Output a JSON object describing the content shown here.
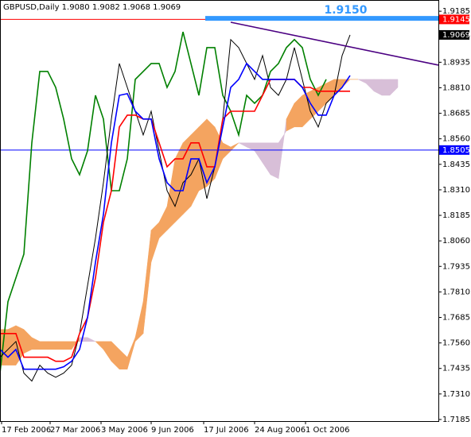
{
  "chart_data": {
    "type": "ichimoku",
    "title": "GBPUSD,Daily  1.9080 1.9082 1.9068 1.9069",
    "xlim": [
      0,
      55.1
    ],
    "xticks": [
      {
        "value": 0.2,
        "label": "17 Feb 2006"
      },
      {
        "value": 6.3,
        "label": "27 Mar 2006"
      },
      {
        "value": 12.7,
        "label": "3 May 2006"
      },
      {
        "value": 19.0,
        "label": "9 Jun 2006"
      },
      {
        "value": 25.6,
        "label": "17 Jul 2006"
      },
      {
        "value": 32.0,
        "label": "24 Aug 2006"
      },
      {
        "value": 38.4,
        "label": "1 Oct 2006"
      }
    ],
    "ylim": [
      1.7177,
      1.924
    ],
    "yticks": [
      1.9185,
      {
        "value": 1.906,
        "label": "1.9060"
      },
      1.8935,
      {
        "value": 1.881,
        "label": "1.8810"
      },
      1.8685,
      {
        "value": 1.856,
        "label": "1.8560"
      },
      1.8435,
      {
        "value": 1.831,
        "label": "1.8310"
      },
      1.8185,
      {
        "value": 1.806,
        "label": "1.8060"
      },
      1.7935,
      {
        "value": 1.781,
        "label": "1.7810"
      },
      1.7685,
      {
        "value": 1.756,
        "label": "1.7560"
      },
      1.7435,
      {
        "value": 1.731,
        "label": "1.7310"
      },
      1.7185
    ],
    "cloud": {
      "up_color": "#f4a460",
      "down_color": "#d8bfd8",
      "span_a": [
        1.7626,
        1.7626,
        1.7645,
        1.7626,
        1.7587,
        1.7567,
        1.7567,
        1.7567,
        1.7567,
        1.7567,
        1.7567,
        1.7567,
        1.7567,
        1.7567,
        1.7567,
        1.7528,
        1.749,
        1.7587,
        1.7762,
        1.8112,
        1.8151,
        1.8229,
        1.8462,
        1.854,
        1.8579,
        1.8618,
        1.8657,
        1.8618,
        1.854,
        1.852,
        1.854,
        1.852,
        1.8501,
        1.8443,
        1.8384,
        1.8365,
        1.8657,
        1.8734,
        1.8773,
        1.8793,
        1.8812,
        1.8832,
        1.8851,
        1.8851,
        1.8851,
        1.8851,
        1.8832,
        1.8793,
        1.8773,
        1.8773,
        1.8812
      ],
      "span_b": [
        1.7451,
        1.7451,
        1.7451,
        1.7509,
        1.7528,
        1.7528,
        1.7528,
        1.7528,
        1.7528,
        1.7528,
        1.7587,
        1.7587,
        1.7567,
        1.7528,
        1.747,
        1.7431,
        1.7431,
        1.7567,
        1.7606,
        1.7956,
        1.8073,
        1.8112,
        1.8151,
        1.819,
        1.8229,
        1.8306,
        1.8326,
        1.8365,
        1.8462,
        1.8501,
        1.854,
        1.854,
        1.854,
        1.854,
        1.854,
        1.854,
        1.8598,
        1.8618,
        1.8618,
        1.8657,
        1.8695,
        1.8734,
        1.8773,
        1.8812,
        1.8851,
        1.8851,
        1.8851,
        1.8851,
        1.8851,
        1.8851,
        1.8851
      ]
    },
    "series": [
      {
        "color": "#008000",
        "values": [
          1.7412,
          1.7762,
          1.7879,
          1.7995,
          1.854,
          1.889,
          1.889,
          1.8812,
          1.8657,
          1.8462,
          1.8384,
          1.8501,
          1.8773,
          1.8657,
          1.8306,
          1.8306,
          1.8462,
          1.8851,
          1.889,
          1.8929,
          1.8929,
          1.8812,
          1.889,
          1.9084,
          1.8929,
          1.8773,
          1.9007,
          1.9007,
          1.8773,
          1.8695,
          1.8579,
          1.8773,
          1.8734,
          1.8773,
          1.889,
          1.8929,
          1.9007,
          1.9046,
          1.9007,
          1.8851,
          1.8773,
          1.8851,
          null,
          null,
          null,
          null,
          null,
          null,
          null,
          null,
          null
        ]
      },
      {
        "color": "#000000",
        "values": [
          1.749,
          1.7528,
          1.7567,
          1.7412,
          1.7373,
          1.7451,
          1.7412,
          1.7392,
          1.7412,
          1.7451,
          1.7606,
          1.784,
          1.8073,
          1.8345,
          1.8657,
          1.8929,
          1.8812,
          1.8695,
          1.8579,
          1.8695,
          1.8501,
          1.8306,
          1.8229,
          1.8345,
          1.8384,
          1.8462,
          1.8267,
          1.8423,
          1.8657,
          1.9046,
          1.9007,
          1.8929,
          1.8851,
          1.8968,
          1.8812,
          1.8773,
          1.8851,
          1.9007,
          1.8851,
          1.8695,
          1.8618,
          1.8734,
          1.8773,
          1.8968,
          1.9069,
          null,
          null,
          null,
          null,
          null,
          null
        ]
      },
      {
        "color": "#ff0000",
        "values": [
          1.7606,
          1.7606,
          1.7606,
          1.749,
          1.749,
          1.749,
          1.749,
          1.747,
          1.747,
          1.749,
          1.7606,
          1.7684,
          1.7879,
          1.8151,
          1.8306,
          1.8618,
          1.8676,
          1.8676,
          1.8657,
          1.8657,
          1.854,
          1.8423,
          1.8462,
          1.8462,
          1.854,
          1.854,
          1.8423,
          1.8423,
          1.8657,
          1.8695,
          1.8695,
          1.8695,
          1.8695,
          1.8773,
          1.8851,
          1.8851,
          1.8851,
          1.8851,
          1.8812,
          1.8812,
          1.8793,
          1.8793,
          1.8793,
          1.8793,
          1.8793,
          null,
          null,
          null,
          null,
          null,
          null
        ]
      },
      {
        "color": "#0000ff",
        "values": [
          1.7528,
          1.749,
          1.7528,
          1.7431,
          1.7431,
          1.7431,
          1.7431,
          1.7431,
          1.7443,
          1.747,
          1.7528,
          1.7684,
          1.7956,
          1.819,
          1.854,
          1.8773,
          1.8781,
          1.8695,
          1.8657,
          1.8657,
          1.8462,
          1.8345,
          1.8306,
          1.8306,
          1.8462,
          1.8462,
          1.8345,
          1.8423,
          1.8618,
          1.8812,
          1.8851,
          1.8929,
          1.889,
          1.8851,
          1.8851,
          1.8851,
          1.8851,
          1.8851,
          1.8812,
          1.8734,
          1.8676,
          1.8676,
          1.8773,
          1.8812,
          1.887,
          null,
          null,
          null,
          null,
          null,
          null
        ]
      }
    ],
    "hlines": [
      {
        "value": 1.9145,
        "color": "#ff0000"
      },
      {
        "value": 1.8505,
        "color": "#0000ff"
      }
    ],
    "current_price": 1.9069,
    "level": {
      "value": 1.915,
      "label": "1.9150",
      "start": 25.8,
      "color": "#3399ff"
    },
    "trendline": {
      "x": [
        29.0,
        55.1
      ],
      "y": [
        1.9131,
        1.8921
      ],
      "color": "#4b0082"
    }
  }
}
